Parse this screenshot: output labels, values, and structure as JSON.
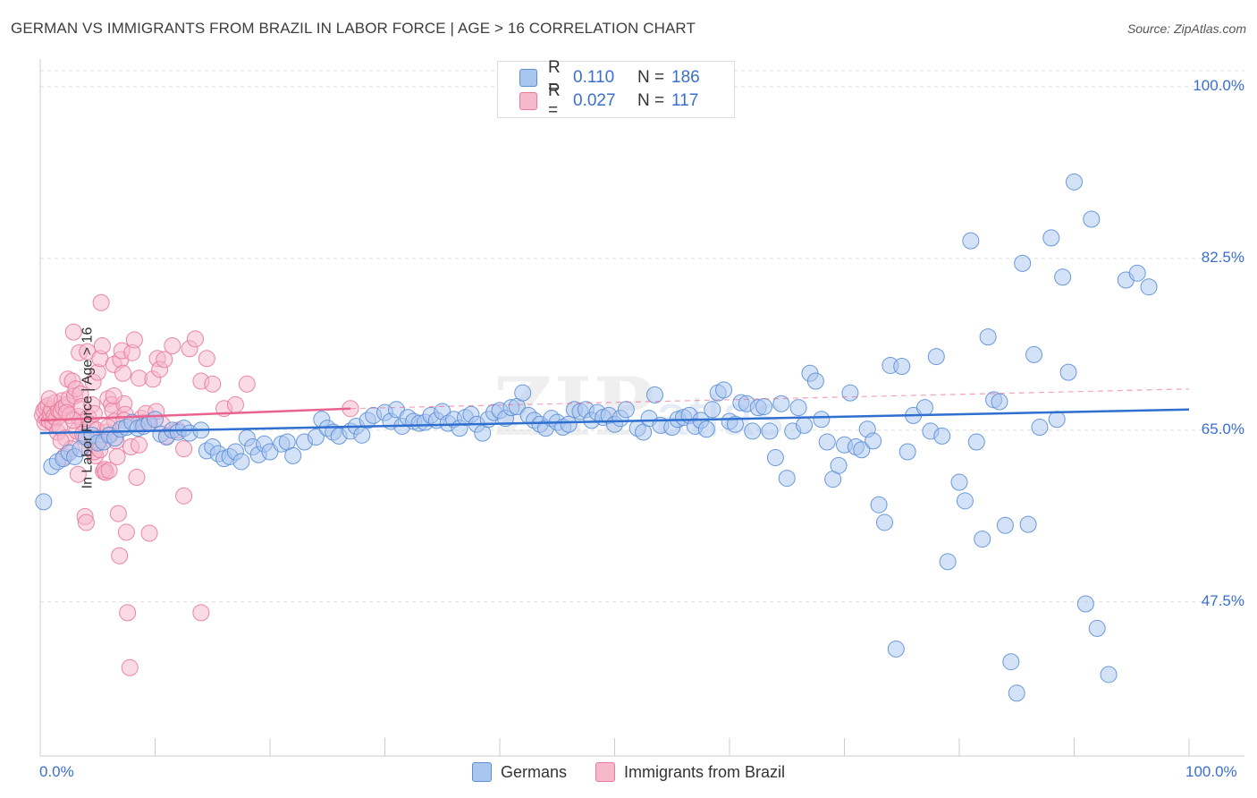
{
  "title": "GERMAN VS IMMIGRANTS FROM BRAZIL IN LABOR FORCE | AGE > 16 CORRELATION CHART",
  "source": "Source: ZipAtlas.com",
  "watermark": {
    "zip": "ZIP",
    "atlas": "atlas"
  },
  "legend_top": {
    "r_label": "R =",
    "n_label": "N =",
    "rows": [
      {
        "r": "0.110",
        "n": "186"
      },
      {
        "r": "0.027",
        "n": "117"
      }
    ]
  },
  "colors": {
    "blue_fill": "#a9c6ef",
    "blue_stroke": "#5b8fd6",
    "blue_line": "#2f6fd0",
    "pink_fill": "#f6b8cb",
    "pink_stroke": "#e8799c",
    "pink_line": "#e8648f",
    "tick_text": "#3a6fcf"
  },
  "chart_data": {
    "type": "scatter",
    "title": "GERMAN VS IMMIGRANTS FROM BRAZIL IN LABOR FORCE | AGE > 16 CORRELATION CHART",
    "ylabel": "In Labor Force | Age > 16",
    "xlabel": "",
    "xlim": [
      0,
      100
    ],
    "ylim": [
      31.8,
      102
    ],
    "y_ticks": [
      {
        "value": 100,
        "label": "100.0%"
      },
      {
        "value": 82.5,
        "label": "82.5%"
      },
      {
        "value": 65,
        "label": "65.0%"
      },
      {
        "value": 47.5,
        "label": "47.5%"
      }
    ],
    "x_tick_labels": {
      "left": "0.0%",
      "right": "100.0%"
    },
    "grid": "horizontal dashed",
    "legend_position": "top-center and bottom",
    "series": [
      {
        "name": "Germans",
        "r": 0.11,
        "n": 186,
        "trend": {
          "x0": 0,
          "y0": 64.7,
          "x1": 100,
          "y1": 67.1,
          "style": "solid"
        },
        "points": [
          [
            0.3,
            57.7
          ],
          [
            1,
            61.3
          ],
          [
            1.5,
            61.8
          ],
          [
            2,
            62.1
          ],
          [
            2.5,
            62.7
          ],
          [
            3,
            62.3
          ],
          [
            3.5,
            63.1
          ],
          [
            4,
            64.3
          ],
          [
            4.5,
            64.5
          ],
          [
            5,
            63.7
          ],
          [
            5.5,
            63.8
          ],
          [
            6,
            64.5
          ],
          [
            6.5,
            64.2
          ],
          [
            7,
            65.1
          ],
          [
            7.5,
            65.3
          ],
          [
            8,
            65.8
          ],
          [
            8.5,
            65.2
          ],
          [
            9,
            65.4
          ],
          [
            9.5,
            65.7
          ],
          [
            10,
            66.1
          ],
          [
            10.5,
            64.6
          ],
          [
            11,
            64.3
          ],
          [
            11.5,
            65.0
          ],
          [
            12,
            64.8
          ],
          [
            12.5,
            65.2
          ],
          [
            13,
            64.7
          ],
          [
            14,
            65.0
          ],
          [
            14.5,
            62.9
          ],
          [
            15,
            63.3
          ],
          [
            15.5,
            62.6
          ],
          [
            16,
            62.1
          ],
          [
            16.5,
            62.3
          ],
          [
            17,
            62.8
          ],
          [
            17.5,
            61.8
          ],
          [
            18,
            64.2
          ],
          [
            18.5,
            63.3
          ],
          [
            19,
            62.5
          ],
          [
            19.5,
            63.6
          ],
          [
            20,
            62.8
          ],
          [
            21,
            63.6
          ],
          [
            21.5,
            63.8
          ],
          [
            22,
            62.4
          ],
          [
            23,
            63.8
          ],
          [
            24,
            64.3
          ],
          [
            24.5,
            66.1
          ],
          [
            25,
            65.2
          ],
          [
            25.5,
            64.8
          ],
          [
            26,
            64.4
          ],
          [
            27,
            64.9
          ],
          [
            27.5,
            65.4
          ],
          [
            28,
            64.5
          ],
          [
            28.5,
            66.0
          ],
          [
            29,
            66.5
          ],
          [
            30,
            66.8
          ],
          [
            30.5,
            65.9
          ],
          [
            31,
            67.1
          ],
          [
            31.5,
            65.4
          ],
          [
            32,
            66.3
          ],
          [
            32.5,
            65.9
          ],
          [
            33,
            65.7
          ],
          [
            33.5,
            65.8
          ],
          [
            34,
            66.5
          ],
          [
            34.5,
            66.0
          ],
          [
            35,
            66.9
          ],
          [
            35.5,
            65.7
          ],
          [
            36,
            66.1
          ],
          [
            36.5,
            65.2
          ],
          [
            37,
            66.3
          ],
          [
            37.5,
            66.6
          ],
          [
            38,
            65.6
          ],
          [
            38.5,
            64.7
          ],
          [
            39,
            66.1
          ],
          [
            39.5,
            66.8
          ],
          [
            40,
            67.0
          ],
          [
            40.5,
            66.2
          ],
          [
            41,
            67.3
          ],
          [
            41.5,
            67.4
          ],
          [
            42,
            68.8
          ],
          [
            42.5,
            66.5
          ],
          [
            43,
            66.0
          ],
          [
            43.5,
            65.6
          ],
          [
            44,
            65.2
          ],
          [
            44.5,
            66.2
          ],
          [
            45,
            65.8
          ],
          [
            45.5,
            65.3
          ],
          [
            46,
            65.6
          ],
          [
            46.5,
            67.1
          ],
          [
            47,
            66.9
          ],
          [
            47.5,
            67.1
          ],
          [
            48,
            66.0
          ],
          [
            48.5,
            66.8
          ],
          [
            49,
            66.3
          ],
          [
            49.5,
            66.5
          ],
          [
            50,
            65.6
          ],
          [
            50.5,
            66.2
          ],
          [
            51,
            67.1
          ],
          [
            52,
            65.2
          ],
          [
            52.5,
            64.8
          ],
          [
            53,
            66.2
          ],
          [
            53.5,
            68.6
          ],
          [
            54,
            65.5
          ],
          [
            55,
            65.3
          ],
          [
            55.5,
            66.1
          ],
          [
            56,
            66.3
          ],
          [
            56.5,
            66.5
          ],
          [
            57,
            65.4
          ],
          [
            57.5,
            66.0
          ],
          [
            58,
            65.1
          ],
          [
            58.5,
            67.1
          ],
          [
            59,
            68.8
          ],
          [
            59.5,
            69.1
          ],
          [
            60,
            65.9
          ],
          [
            60.5,
            65.6
          ],
          [
            61,
            67.8
          ],
          [
            61.5,
            67.7
          ],
          [
            62,
            64.9
          ],
          [
            62.5,
            67.3
          ],
          [
            63,
            67.4
          ],
          [
            63.5,
            64.9
          ],
          [
            64,
            62.2
          ],
          [
            64.5,
            67.7
          ],
          [
            65,
            60.1
          ],
          [
            65.5,
            64.9
          ],
          [
            66,
            67.3
          ],
          [
            66.5,
            65.5
          ],
          [
            67,
            70.8
          ],
          [
            67.5,
            70.0
          ],
          [
            68,
            66.1
          ],
          [
            68.5,
            63.8
          ],
          [
            69,
            60.0
          ],
          [
            69.5,
            61.4
          ],
          [
            70,
            63.5
          ],
          [
            70.5,
            68.8
          ],
          [
            71,
            63.3
          ],
          [
            71.5,
            63.0
          ],
          [
            72,
            65.1
          ],
          [
            72.5,
            63.9
          ],
          [
            73,
            57.4
          ],
          [
            73.5,
            55.6
          ],
          [
            74,
            71.6
          ],
          [
            75,
            71.5
          ],
          [
            75.5,
            62.8
          ],
          [
            76,
            66.5
          ],
          [
            77,
            67.3
          ],
          [
            77.5,
            64.9
          ],
          [
            78,
            72.5
          ],
          [
            78.5,
            64.4
          ],
          [
            79,
            51.6
          ],
          [
            80,
            59.7
          ],
          [
            80.5,
            57.8
          ],
          [
            81,
            84.3
          ],
          [
            81.5,
            63.8
          ],
          [
            82,
            53.9
          ],
          [
            82.5,
            74.5
          ],
          [
            83,
            68.1
          ],
          [
            83.5,
            67.9
          ],
          [
            84,
            55.3
          ],
          [
            84.5,
            41.4
          ],
          [
            85,
            38.2
          ],
          [
            85.5,
            82.0
          ],
          [
            86,
            55.4
          ],
          [
            86.5,
            72.7
          ],
          [
            87,
            65.3
          ],
          [
            88,
            84.6
          ],
          [
            88.5,
            66.1
          ],
          [
            89,
            80.6
          ],
          [
            89.5,
            70.9
          ],
          [
            90,
            90.3
          ],
          [
            91,
            47.3
          ],
          [
            91.5,
            86.5
          ],
          [
            92,
            44.8
          ],
          [
            93,
            40.1
          ],
          [
            94.5,
            80.3
          ],
          [
            95.5,
            81.0
          ],
          [
            96.5,
            79.6
          ],
          [
            74.5,
            42.7
          ]
        ]
      },
      {
        "name": "Immigrants from Brazil",
        "r": 0.027,
        "n": 117,
        "trend": {
          "x0": 0,
          "y0": 66.0,
          "x1": 27,
          "y1": 67.2,
          "style": "solid",
          "extension": {
            "x1": 100,
            "y1": 69.2,
            "style": "dashed"
          }
        },
        "points": [
          [
            0.2,
            66.5
          ],
          [
            0.3,
            67.0
          ],
          [
            0.4,
            65.8
          ],
          [
            0.5,
            67.3
          ],
          [
            0.6,
            66.1
          ],
          [
            0.7,
            67.5
          ],
          [
            0.8,
            65.9
          ],
          [
            0.9,
            66.7
          ],
          [
            1.0,
            67.1
          ],
          [
            1.1,
            65.7
          ],
          [
            1.2,
            66.4
          ],
          [
            1.3,
            67.8
          ],
          [
            1.4,
            66.2
          ],
          [
            1.5,
            64.8
          ],
          [
            1.6,
            67.0
          ],
          [
            1.7,
            65.3
          ],
          [
            1.8,
            66.9
          ],
          [
            1.9,
            68.0
          ],
          [
            2.0,
            67.3
          ],
          [
            2.1,
            62.3
          ],
          [
            2.2,
            64.2
          ],
          [
            2.3,
            67.6
          ],
          [
            2.4,
            70.2
          ],
          [
            2.5,
            68.2
          ],
          [
            2.6,
            66.5
          ],
          [
            2.7,
            63.1
          ],
          [
            2.8,
            70.0
          ],
          [
            2.9,
            75.0
          ],
          [
            3.0,
            68.5
          ],
          [
            3.1,
            69.2
          ],
          [
            3.2,
            64.9
          ],
          [
            3.3,
            66.4
          ],
          [
            3.4,
            72.9
          ],
          [
            3.5,
            68.7
          ],
          [
            3.6,
            67.4
          ],
          [
            3.7,
            65.8
          ],
          [
            3.8,
            64.3
          ],
          [
            3.9,
            56.2
          ],
          [
            4.0,
            55.6
          ],
          [
            4.1,
            73.0
          ],
          [
            4.2,
            66.3
          ],
          [
            4.3,
            63.1
          ],
          [
            4.4,
            65.6
          ],
          [
            4.5,
            67.6
          ],
          [
            4.6,
            69.9
          ],
          [
            4.7,
            66.7
          ],
          [
            4.8,
            62.4
          ],
          [
            4.9,
            65.0
          ],
          [
            5.0,
            70.9
          ],
          [
            5.1,
            63.8
          ],
          [
            5.2,
            72.3
          ],
          [
            5.3,
            78.0
          ],
          [
            5.4,
            73.6
          ],
          [
            5.5,
            60.8
          ],
          [
            5.6,
            61.0
          ],
          [
            5.7,
            60.7
          ],
          [
            5.8,
            64.8
          ],
          [
            5.9,
            68.2
          ],
          [
            6.0,
            60.9
          ],
          [
            6.1,
            64.5
          ],
          [
            6.2,
            67.6
          ],
          [
            6.3,
            67.0
          ],
          [
            6.4,
            71.7
          ],
          [
            6.5,
            65.9
          ],
          [
            6.6,
            63.9
          ],
          [
            6.7,
            62.3
          ],
          [
            6.8,
            56.5
          ],
          [
            6.9,
            52.2
          ],
          [
            7.0,
            72.2
          ],
          [
            7.1,
            73.1
          ],
          [
            7.2,
            70.8
          ],
          [
            7.3,
            67.7
          ],
          [
            7.4,
            66.6
          ],
          [
            7.5,
            54.6
          ],
          [
            7.6,
            46.4
          ],
          [
            7.8,
            40.8
          ],
          [
            7.9,
            63.3
          ],
          [
            8.0,
            72.9
          ],
          [
            8.2,
            74.2
          ],
          [
            8.4,
            60.2
          ],
          [
            8.6,
            70.3
          ],
          [
            8.8,
            66.2
          ],
          [
            9.0,
            65.8
          ],
          [
            9.2,
            66.7
          ],
          [
            9.5,
            54.5
          ],
          [
            9.8,
            70.2
          ],
          [
            10.2,
            72.3
          ],
          [
            10.4,
            71.2
          ],
          [
            10.6,
            65.6
          ],
          [
            10.8,
            72.2
          ],
          [
            11.0,
            64.4
          ],
          [
            11.5,
            73.6
          ],
          [
            12.0,
            65.0
          ],
          [
            12.5,
            63.1
          ],
          [
            13.0,
            73.3
          ],
          [
            13.5,
            74.3
          ],
          [
            14.0,
            70.0
          ],
          [
            14.5,
            72.3
          ],
          [
            15.0,
            69.7
          ],
          [
            16.0,
            67.2
          ],
          [
            17.0,
            67.6
          ],
          [
            18.0,
            69.7
          ],
          [
            8.6,
            63.5
          ],
          [
            3.3,
            60.5
          ],
          [
            12.5,
            58.3
          ],
          [
            4.7,
            62.8
          ],
          [
            6.4,
            68.5
          ],
          [
            5.9,
            65.3
          ],
          [
            2.9,
            66.0
          ],
          [
            3.7,
            64.6
          ],
          [
            1.8,
            63.9
          ],
          [
            9.4,
            65.7
          ],
          [
            10.1,
            66.9
          ],
          [
            7.3,
            66.0
          ],
          [
            0.8,
            68.2
          ],
          [
            2.3,
            66.8
          ],
          [
            27.0,
            67.2
          ],
          [
            14.0,
            46.4
          ],
          [
            5.2,
            63.0
          ]
        ]
      }
    ]
  },
  "legend_bottom": [
    {
      "label": "Germans"
    },
    {
      "label": "Immigrants from Brazil"
    }
  ]
}
